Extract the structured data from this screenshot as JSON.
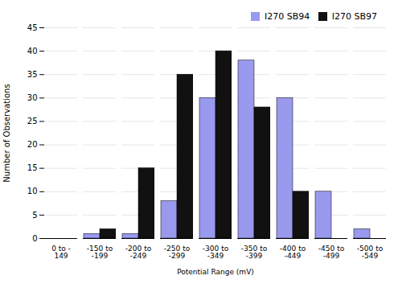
{
  "chart_data": {
    "type": "bar",
    "categories": [
      "0 to -149",
      "-150 to -199",
      "-200 to -249",
      "-250 to -299",
      "-300 to -349",
      "-350 to -399",
      "-400 to -449",
      "-450 to -499",
      "-500 to -549"
    ],
    "series": [
      {
        "name": "I270 SB94",
        "color": "#9999ee",
        "values": [
          0,
          1,
          1,
          8,
          30,
          38,
          30,
          10,
          2
        ]
      },
      {
        "name": "I270 SB97",
        "color": "#111111",
        "values": [
          0,
          2,
          15,
          35,
          40,
          28,
          10,
          0,
          0
        ]
      }
    ],
    "xlabel": "Potential Range (mV)",
    "ylabel": "Number of Observations",
    "ylim": [
      0,
      45
    ],
    "yticks": [
      0,
      5,
      10,
      15,
      20,
      25,
      30,
      35,
      40,
      45
    ],
    "grid": true,
    "legend": "upper right"
  }
}
